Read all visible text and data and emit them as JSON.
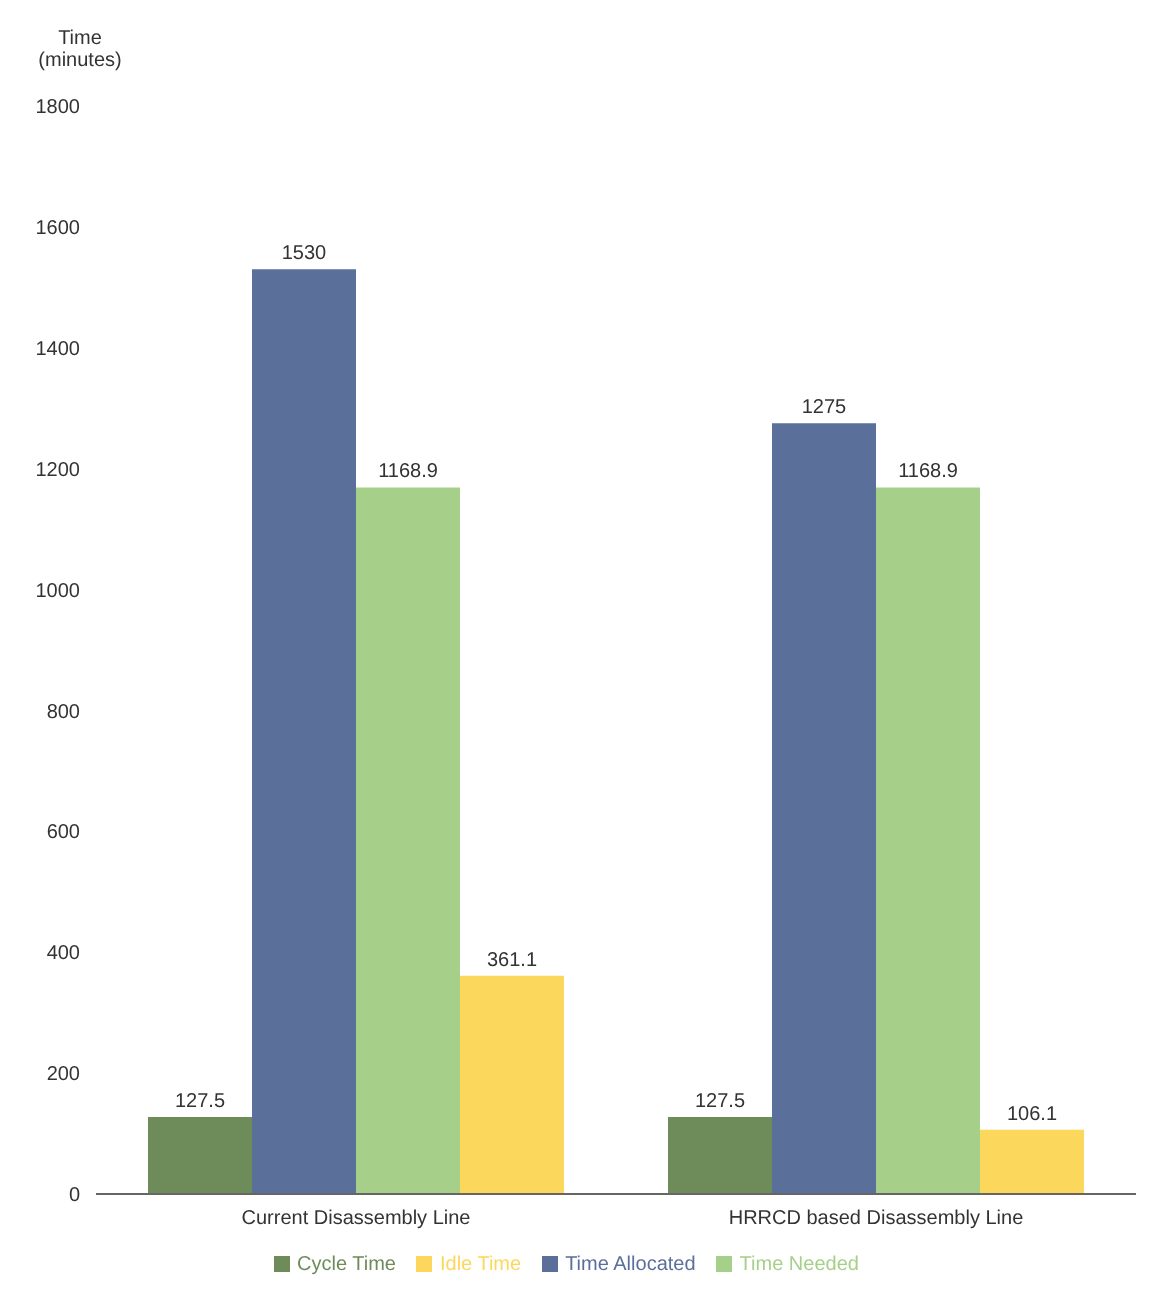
{
  "chart_data": {
    "type": "bar",
    "ylabel": "Time (minutes)",
    "categories": [
      "Current Disassembly Line",
      "HRRCD based Disassembly Line"
    ],
    "series": [
      {
        "name": "Cycle Time",
        "color": "#6e8b5a",
        "values": [
          127.5,
          127.5
        ]
      },
      {
        "name": "Time Allocated",
        "color": "#5a6f9a",
        "values": [
          1530,
          1275
        ]
      },
      {
        "name": "Time Needed",
        "color": "#a6d08a",
        "values": [
          1168.9,
          1168.9
        ]
      },
      {
        "name": "Idle Time",
        "color": "#fbd75b",
        "values": [
          361.1,
          106.1
        ]
      }
    ],
    "ylim": [
      0,
      1800
    ],
    "yticks": [
      0,
      200,
      400,
      600,
      800,
      1000,
      1200,
      1400,
      1600,
      1800
    ],
    "data_labels": true,
    "legend": "bottom",
    "grid": false
  }
}
